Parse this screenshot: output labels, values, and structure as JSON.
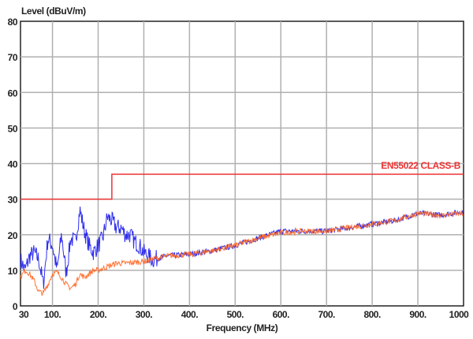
{
  "chart_data": {
    "type": "line",
    "title": "",
    "xlabel": "Frequency (MHz)",
    "ylabel": "Level (dBuV/m)",
    "xlim": [
      30,
      1000
    ],
    "ylim": [
      0,
      80
    ],
    "grid": true,
    "x_ticks": [
      30,
      100,
      200,
      300,
      400,
      500,
      600,
      700,
      800,
      900,
      1000
    ],
    "x_tick_labels": [
      "30",
      "100.",
      "200.",
      "300.",
      "400.",
      "500.",
      "600.",
      "700.",
      "800.",
      "900.",
      "1000"
    ],
    "y_ticks": [
      0,
      10,
      20,
      30,
      40,
      50,
      60,
      70,
      80
    ],
    "y_tick_labels": [
      "0",
      "10",
      "20",
      "30",
      "40",
      "50",
      "60",
      "70",
      "80"
    ],
    "limit_line": {
      "name": "EN55022 CLASS-B",
      "color": "#ee3333",
      "points": [
        [
          30,
          30
        ],
        [
          230,
          30
        ],
        [
          230,
          37
        ],
        [
          1000,
          37
        ]
      ]
    },
    "series": [
      {
        "color": "#1a1aee",
        "x": [
          30,
          40,
          50,
          60,
          70,
          80,
          90,
          100,
          110,
          120,
          130,
          140,
          150,
          160,
          170,
          180,
          190,
          200,
          210,
          220,
          230,
          240,
          250,
          260,
          270,
          280,
          290,
          300,
          310,
          320,
          350,
          400,
          450,
          500,
          550,
          600,
          650,
          700,
          750,
          800,
          850,
          900,
          950,
          1000
        ],
        "y": [
          13,
          10,
          14,
          15,
          13,
          6,
          19,
          17,
          10,
          20,
          9,
          19,
          18,
          27,
          21,
          17,
          15,
          17,
          19,
          25,
          24,
          22,
          22,
          20,
          20,
          18,
          17,
          15,
          14,
          13,
          14,
          14.5,
          15.5,
          17,
          19,
          21,
          21,
          21,
          22,
          23,
          24,
          26,
          25.5,
          26.5
        ]
      },
      {
        "color": "#ff6622",
        "x": [
          30,
          40,
          50,
          60,
          70,
          80,
          90,
          100,
          110,
          120,
          130,
          140,
          150,
          160,
          170,
          180,
          190,
          200,
          220,
          240,
          260,
          300,
          350,
          400,
          450,
          500,
          550,
          600,
          650,
          700,
          750,
          800,
          850,
          900,
          950,
          1000
        ],
        "y": [
          8,
          10,
          9,
          7,
          4,
          3.5,
          6,
          9,
          9.5,
          8,
          6,
          5,
          6,
          9,
          8,
          9,
          10,
          10,
          11,
          12,
          12,
          12.5,
          14,
          14.5,
          15.5,
          17,
          19,
          20.5,
          21,
          21,
          22,
          23,
          24,
          26,
          25.5,
          26
        ]
      }
    ]
  }
}
